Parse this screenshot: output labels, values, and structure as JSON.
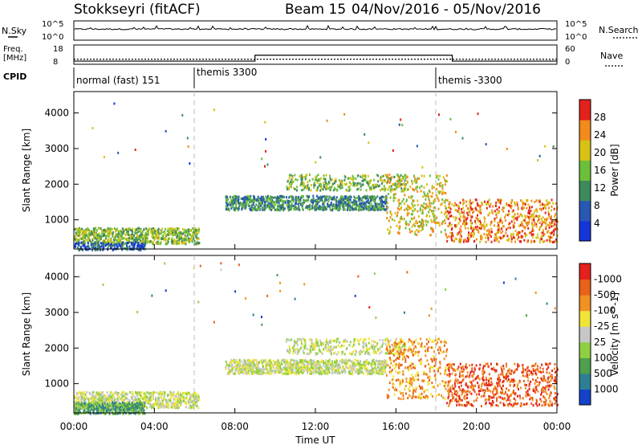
{
  "header": {
    "station": "Stokkseyri (fitACF)",
    "beam": "Beam 15",
    "dates": "04/Nov/2016 - 05/Nov/2016"
  },
  "top_panels": {
    "nsky_label": "N.Sky",
    "nsky_ticks": [
      "10^5",
      "10^0"
    ],
    "nsearch_label": "N.Search",
    "nsearch_ticks": [
      "10^5",
      "10^0"
    ],
    "freq_label_1": "Freq.",
    "freq_label_2": "[MHz]",
    "freq_ticks": [
      "18",
      "8"
    ],
    "nave_label": "Nave",
    "nave_ticks": [
      "60",
      "0"
    ],
    "cpid_label": "CPID",
    "cpid_segments": [
      {
        "label": "normal (fast) 151",
        "start_h": 0
      },
      {
        "label": "themis 3300",
        "start_h": 6
      },
      {
        "label": "themis -3300",
        "start_h": 18
      }
    ],
    "freq_mhz": [
      {
        "start_h": 0,
        "end_h": 24,
        "value": 10.4
      }
    ],
    "nave_steps": [
      {
        "start_h": 0,
        "end_h": 9,
        "value": 8
      },
      {
        "start_h": 9,
        "end_h": 18.8,
        "value": 28
      },
      {
        "start_h": 18.8,
        "end_h": 24,
        "value": 8
      }
    ]
  },
  "chart_data": [
    {
      "type": "heatmap",
      "xlabel": "",
      "ylabel": "Slant Range [km]",
      "x_range_h": [
        0,
        24
      ],
      "ylim": [
        180,
        4600
      ],
      "y_ticks": [
        1000,
        2000,
        3000,
        4000
      ],
      "colorbar_label": "Power [dB]",
      "colorbar_ticks": [
        "4",
        "8",
        "12",
        "16",
        "20",
        "24",
        "28"
      ],
      "colorbar_colors": [
        "#1535d8",
        "#2858b2",
        "#3f8a5c",
        "#6cbf3a",
        "#d7c216",
        "#f28a1c",
        "#e3211d"
      ],
      "scatter_regions": [
        {
          "x": [
            0,
            6.2
          ],
          "y": [
            350,
            800
          ],
          "level": 3,
          "density": "high"
        },
        {
          "x": [
            0,
            3.5
          ],
          "y": [
            180,
            400
          ],
          "level": 1,
          "density": "medium"
        },
        {
          "x": [
            7.5,
            15.5
          ],
          "y": [
            1300,
            1700
          ],
          "level": 2,
          "density": "high"
        },
        {
          "x": [
            10.5,
            16.5
          ],
          "y": [
            1850,
            2300
          ],
          "level": 3,
          "density": "medium"
        },
        {
          "x": [
            15.5,
            18.5
          ],
          "y": [
            600,
            2300
          ],
          "level": 4,
          "density": "high"
        },
        {
          "x": [
            18.5,
            24
          ],
          "y": [
            400,
            1600
          ],
          "level": 5,
          "density": "high"
        }
      ]
    },
    {
      "type": "heatmap",
      "xlabel": "Time UT",
      "ylabel": "Slant Range [km]",
      "x_ticks": [
        "00:00",
        "04:00",
        "08:00",
        "12:00",
        "16:00",
        "20:00",
        "00:00"
      ],
      "x_range_h": [
        0,
        24
      ],
      "ylim": [
        180,
        4600
      ],
      "y_ticks": [
        1000,
        2000,
        3000,
        4000
      ],
      "colorbar_label": "Velocity [m s^-1]",
      "colorbar_ticks": [
        "1000",
        "500",
        "100",
        "25",
        "-25",
        "-100",
        "-500",
        "-1000"
      ],
      "colorbar_colors": [
        "#1542c8",
        "#2f7f94",
        "#4f9f4c",
        "#8fd043",
        "#c7c7c7",
        "#f1e436",
        "#f29022",
        "#e8621a",
        "#e3211d"
      ],
      "scatter_regions": [
        {
          "x": [
            0,
            6.2
          ],
          "y": [
            350,
            800
          ],
          "level": 4,
          "density": "high"
        },
        {
          "x": [
            0,
            3.5
          ],
          "y": [
            180,
            500
          ],
          "level": 2,
          "density": "high"
        },
        {
          "x": [
            7.5,
            15.5
          ],
          "y": [
            1300,
            1700
          ],
          "level": 4,
          "density": "high"
        },
        {
          "x": [
            10.5,
            16.5
          ],
          "y": [
            1850,
            2300
          ],
          "level": 4,
          "density": "medium"
        },
        {
          "x": [
            15.5,
            18.5
          ],
          "y": [
            600,
            2300
          ],
          "level": 6,
          "density": "high"
        },
        {
          "x": [
            18.5,
            24
          ],
          "y": [
            400,
            1600
          ],
          "level": 7,
          "density": "high"
        }
      ]
    }
  ]
}
